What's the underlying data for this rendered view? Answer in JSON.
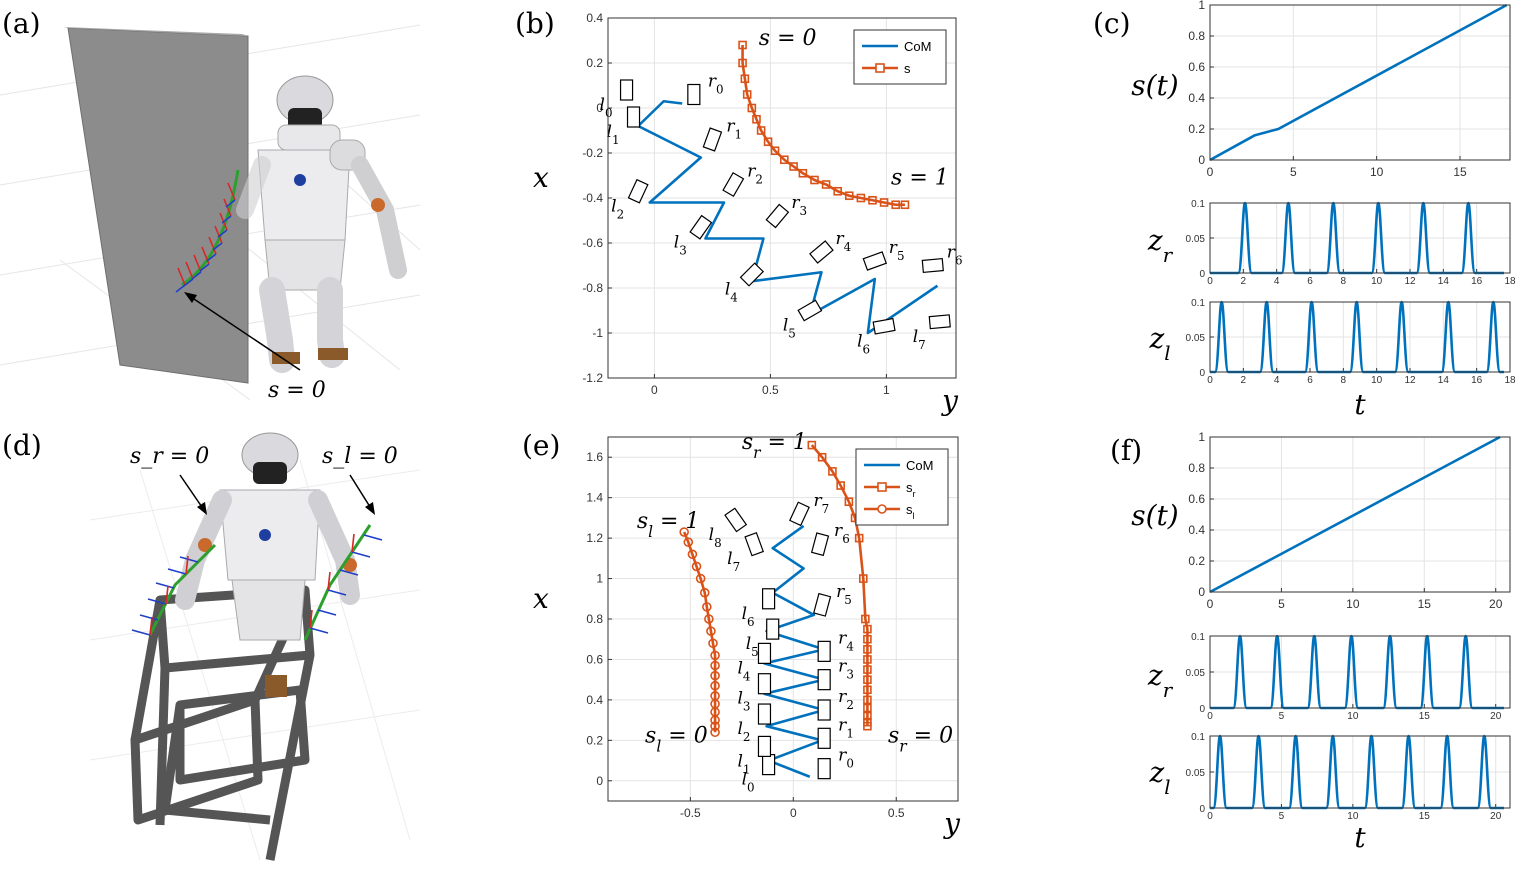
{
  "panels": {
    "a": "(a)",
    "b": "(b)",
    "c": "(c)",
    "d": "(d)",
    "e": "(e)",
    "f": "(f)"
  },
  "scene_a": {
    "annotation": "s = 0"
  },
  "scene_d": {
    "annotation_right": "s_r = 0",
    "annotation_left": "s_l = 0"
  },
  "colors": {
    "com": "#0072BD",
    "s": "#D95319"
  },
  "chart_data": [
    {
      "id": "b",
      "type": "line",
      "xlabel": "y",
      "ylabel": "x",
      "xlim": [
        -0.2,
        1.3
      ],
      "ylim": [
        -1.2,
        0.4
      ],
      "xticks": [
        0,
        0.5,
        1
      ],
      "yticks": [
        -1.2,
        -1,
        -0.8,
        -0.6,
        -0.4,
        -0.2,
        0,
        0.2,
        0.4
      ],
      "grid": true,
      "legend": "top-right",
      "series": [
        {
          "name": "CoM",
          "marker": "none",
          "x": [
            0.12,
            0.04,
            -0.07,
            0.2,
            -0.02,
            0.3,
            0.22,
            0.47,
            0.42,
            0.72,
            0.67,
            0.95,
            0.92,
            1.22
          ],
          "y": [
            0.02,
            0.03,
            -0.08,
            -0.22,
            -0.42,
            -0.42,
            -0.58,
            -0.58,
            -0.77,
            -0.73,
            -0.92,
            -0.76,
            -1.0,
            -0.79
          ]
        },
        {
          "name": "s",
          "marker": "square",
          "x": [
            0.38,
            0.38,
            0.39,
            0.4,
            0.42,
            0.44,
            0.46,
            0.49,
            0.52,
            0.56,
            0.6,
            0.64,
            0.69,
            0.74,
            0.79,
            0.84,
            0.89,
            0.94,
            0.99,
            1.04,
            1.08
          ],
          "y": [
            0.28,
            0.2,
            0.13,
            0.06,
            0.0,
            -0.05,
            -0.1,
            -0.15,
            -0.19,
            -0.23,
            -0.26,
            -0.29,
            -0.32,
            -0.34,
            -0.37,
            -0.39,
            -0.4,
            -0.41,
            -0.42,
            -0.43,
            -0.43
          ]
        }
      ],
      "annotations": [
        {
          "text": "s = 0",
          "x": 0.45,
          "y": 0.28
        },
        {
          "text": "s = 1",
          "x": 1.02,
          "y": -0.34
        }
      ],
      "footsteps": [
        {
          "label": "l",
          "sub": "0",
          "x": -0.12,
          "y": 0.08,
          "r": 0
        },
        {
          "label": "r",
          "sub": "0",
          "x": 0.17,
          "y": 0.06,
          "r": 0
        },
        {
          "label": "l",
          "sub": "1",
          "x": -0.09,
          "y": -0.04,
          "r": 0
        },
        {
          "label": "r",
          "sub": "1",
          "x": 0.25,
          "y": -0.14,
          "r": 20
        },
        {
          "label": "l",
          "sub": "2",
          "x": -0.07,
          "y": -0.37,
          "r": 25
        },
        {
          "label": "r",
          "sub": "2",
          "x": 0.34,
          "y": -0.34,
          "r": 30
        },
        {
          "label": "l",
          "sub": "3",
          "x": 0.2,
          "y": -0.53,
          "r": 35
        },
        {
          "label": "r",
          "sub": "3",
          "x": 0.53,
          "y": -0.48,
          "r": 40
        },
        {
          "label": "l",
          "sub": "4",
          "x": 0.42,
          "y": -0.74,
          "r": 45
        },
        {
          "label": "r",
          "sub": "4",
          "x": 0.72,
          "y": -0.64,
          "r": 50
        },
        {
          "label": "l",
          "sub": "5",
          "x": 0.67,
          "y": -0.9,
          "r": 60
        },
        {
          "label": "r",
          "sub": "5",
          "x": 0.95,
          "y": -0.68,
          "r": 70
        },
        {
          "label": "l",
          "sub": "6",
          "x": 0.99,
          "y": -0.97,
          "r": 80
        },
        {
          "label": "r",
          "sub": "6",
          "x": 1.2,
          "y": -0.7,
          "r": 85
        },
        {
          "label": "l",
          "sub": "7",
          "x": 1.23,
          "y": -0.95,
          "r": 85
        }
      ]
    },
    {
      "id": "c_s",
      "type": "line",
      "ylabel": "s(t)",
      "xlim": [
        0,
        18
      ],
      "ylim": [
        0,
        1
      ],
      "xticks": [
        0,
        5,
        10,
        15
      ],
      "yticks": [
        0,
        0.2,
        0.4,
        0.6,
        0.8,
        1
      ],
      "grid": true,
      "series": [
        {
          "name": "",
          "x": [
            0,
            2.7,
            4.1,
            17.8
          ],
          "y": [
            0,
            0.16,
            0.2,
            1
          ]
        }
      ]
    },
    {
      "id": "c_zr",
      "type": "line",
      "ylabel": "z_r",
      "xlim": [
        0,
        18
      ],
      "ylim": [
        0,
        0.1
      ],
      "xticks": [
        0,
        2,
        4,
        6,
        8,
        10,
        12,
        14,
        16,
        18
      ],
      "yticks": [
        0,
        0.05,
        0.1
      ],
      "grid": true,
      "pulse_centers": [
        2.1,
        4.7,
        7.4,
        10.1,
        12.8,
        15.5
      ],
      "pulse_height": 0.1
    },
    {
      "id": "c_zl",
      "type": "line",
      "ylabel": "z_l",
      "xlabel": "t",
      "xlim": [
        0,
        18
      ],
      "ylim": [
        0,
        0.1
      ],
      "xticks": [
        0,
        2,
        4,
        6,
        8,
        10,
        12,
        14,
        16,
        18
      ],
      "yticks": [
        0,
        0.05,
        0.1
      ],
      "grid": true,
      "pulse_centers": [
        0.7,
        3.4,
        6.1,
        8.8,
        11.5,
        14.3,
        17.0
      ],
      "pulse_height": 0.1
    },
    {
      "id": "e",
      "type": "line",
      "xlabel": "y",
      "ylabel": "x",
      "xlim": [
        -0.9,
        0.8
      ],
      "ylim": [
        -0.1,
        1.7
      ],
      "xticks": [
        -0.5,
        0,
        0.5
      ],
      "yticks": [
        0,
        0.2,
        0.4,
        0.6,
        0.8,
        1,
        1.2,
        1.4,
        1.6
      ],
      "grid": true,
      "legend": "top-right",
      "series": [
        {
          "name": "CoM",
          "marker": "none",
          "x": [
            0.08,
            -0.12,
            0.14,
            -0.13,
            0.15,
            -0.14,
            0.15,
            -0.14,
            0.15,
            -0.13,
            0.1,
            -0.1,
            0.05,
            -0.1,
            0.05
          ],
          "y": [
            0.02,
            0.1,
            0.2,
            0.27,
            0.35,
            0.43,
            0.5,
            0.58,
            0.65,
            0.74,
            0.82,
            0.93,
            1.05,
            1.15,
            1.26
          ]
        },
        {
          "name": "s_r",
          "marker": "square",
          "x": [
            0.09,
            0.14,
            0.19,
            0.23,
            0.27,
            0.3,
            0.32,
            0.34,
            0.35,
            0.36,
            0.36,
            0.36,
            0.36,
            0.36,
            0.36,
            0.36,
            0.36,
            0.36,
            0.36,
            0.36,
            0.36
          ],
          "y": [
            1.66,
            1.6,
            1.53,
            1.46,
            1.38,
            1.3,
            1.2,
            1.0,
            0.8,
            0.75,
            0.7,
            0.65,
            0.6,
            0.55,
            0.5,
            0.45,
            0.4,
            0.36,
            0.32,
            0.29,
            0.27
          ]
        },
        {
          "name": "s_l",
          "marker": "circle",
          "x": [
            -0.53,
            -0.51,
            -0.49,
            -0.47,
            -0.45,
            -0.43,
            -0.42,
            -0.41,
            -0.4,
            -0.39,
            -0.38,
            -0.38,
            -0.38,
            -0.38,
            -0.38,
            -0.38,
            -0.38,
            -0.38,
            -0.38,
            -0.38
          ],
          "y": [
            1.23,
            1.18,
            1.12,
            1.06,
            1.0,
            0.93,
            0.86,
            0.8,
            0.74,
            0.68,
            0.62,
            0.57,
            0.52,
            0.47,
            0.42,
            0.38,
            0.34,
            0.3,
            0.27,
            0.24
          ]
        }
      ],
      "annotations": [
        {
          "text": "s_r = 1",
          "x": -0.25,
          "y": 1.64
        },
        {
          "text": "s_l = 1",
          "x": -0.76,
          "y": 1.25
        },
        {
          "text": "s_l = 0",
          "x": -0.72,
          "y": 0.19
        },
        {
          "text": "s_r = 0",
          "x": 0.46,
          "y": 0.19
        }
      ],
      "footsteps": [
        {
          "label": "l",
          "sub": "0",
          "x": -0.12,
          "y": 0.08,
          "r": 0
        },
        {
          "label": "r",
          "sub": "0",
          "x": 0.15,
          "y": 0.06,
          "r": 0
        },
        {
          "label": "l",
          "sub": "1",
          "x": -0.14,
          "y": 0.17,
          "r": 0
        },
        {
          "label": "r",
          "sub": "1",
          "x": 0.15,
          "y": 0.21,
          "r": 0
        },
        {
          "label": "l",
          "sub": "2",
          "x": -0.14,
          "y": 0.33,
          "r": 0
        },
        {
          "label": "r",
          "sub": "2",
          "x": 0.15,
          "y": 0.35,
          "r": 0
        },
        {
          "label": "l",
          "sub": "3",
          "x": -0.14,
          "y": 0.48,
          "r": 0
        },
        {
          "label": "r",
          "sub": "3",
          "x": 0.15,
          "y": 0.5,
          "r": 0
        },
        {
          "label": "l",
          "sub": "4",
          "x": -0.14,
          "y": 0.63,
          "r": 0
        },
        {
          "label": "r",
          "sub": "4",
          "x": 0.15,
          "y": 0.64,
          "r": 0
        },
        {
          "label": "l",
          "sub": "5",
          "x": -0.1,
          "y": 0.75,
          "r": 0
        },
        {
          "label": "r",
          "sub": "5",
          "x": 0.14,
          "y": 0.87,
          "r": 15
        },
        {
          "label": "l",
          "sub": "6",
          "x": -0.12,
          "y": 0.9,
          "r": 0
        },
        {
          "label": "r",
          "sub": "6",
          "x": 0.13,
          "y": 1.17,
          "r": 15
        },
        {
          "label": "l",
          "sub": "7",
          "x": -0.19,
          "y": 1.17,
          "r": -20
        },
        {
          "label": "r",
          "sub": "7",
          "x": 0.03,
          "y": 1.32,
          "r": 25
        },
        {
          "label": "l",
          "sub": "8",
          "x": -0.28,
          "y": 1.29,
          "r": -35
        }
      ]
    },
    {
      "id": "f_s",
      "type": "line",
      "ylabel": "s(t)",
      "xlim": [
        0,
        21
      ],
      "ylim": [
        0,
        1
      ],
      "xticks": [
        0,
        5,
        10,
        15,
        20
      ],
      "yticks": [
        0,
        0.2,
        0.4,
        0.6,
        0.8,
        1
      ],
      "grid": true,
      "series": [
        {
          "name": "",
          "x": [
            0,
            20.3
          ],
          "y": [
            0,
            1
          ]
        }
      ]
    },
    {
      "id": "f_zr",
      "type": "line",
      "ylabel": "z_r",
      "xlim": [
        0,
        21
      ],
      "ylim": [
        0,
        0.1
      ],
      "xticks": [
        0,
        5,
        10,
        15,
        20
      ],
      "yticks": [
        0,
        0.05,
        0.1
      ],
      "grid": true,
      "pulse_centers": [
        2.1,
        4.7,
        7.3,
        9.9,
        12.6,
        15.2,
        17.9
      ],
      "pulse_height": 0.1
    },
    {
      "id": "f_zl",
      "type": "line",
      "ylabel": "z_l",
      "xlabel": "t",
      "xlim": [
        0,
        21
      ],
      "ylim": [
        0,
        0.1
      ],
      "xticks": [
        0,
        5,
        10,
        15,
        20
      ],
      "yticks": [
        0,
        0.05,
        0.1
      ],
      "grid": true,
      "pulse_centers": [
        0.7,
        3.4,
        6.0,
        8.6,
        11.3,
        13.9,
        16.6,
        19.2
      ],
      "pulse_height": 0.1
    }
  ]
}
